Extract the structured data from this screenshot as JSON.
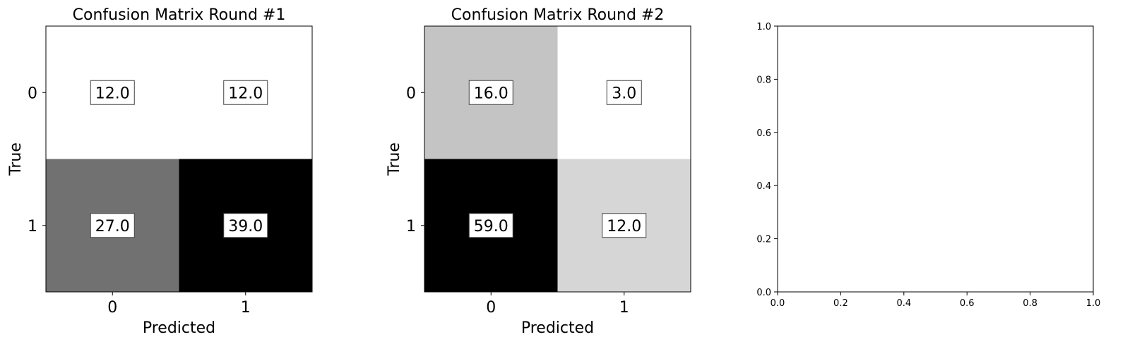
{
  "chart_data": [
    {
      "type": "heatmap",
      "title": "Confusion Matrix Round #1",
      "xlabel": "Predicted",
      "ylabel": "True",
      "x_categories": [
        "0",
        "1"
      ],
      "y_categories": [
        "0",
        "1"
      ],
      "values": [
        [
          12.0,
          12.0
        ],
        [
          27.0,
          39.0
        ]
      ],
      "value_labels": [
        [
          "12.0",
          "12.0"
        ],
        [
          "27.0",
          "39.0"
        ]
      ],
      "colormap": "grayscale-reversed",
      "color_range": [
        12.0,
        39.0
      ]
    },
    {
      "type": "heatmap",
      "title": "Confusion Matrix Round #2",
      "xlabel": "Predicted",
      "ylabel": "True",
      "x_categories": [
        "0",
        "1"
      ],
      "y_categories": [
        "0",
        "1"
      ],
      "values": [
        [
          16.0,
          3.0
        ],
        [
          59.0,
          12.0
        ]
      ],
      "value_labels": [
        [
          "16.0",
          "3.0"
        ],
        [
          "59.0",
          "12.0"
        ]
      ],
      "colormap": "grayscale-reversed",
      "color_range": [
        3.0,
        59.0
      ]
    },
    {
      "type": "line",
      "title": "",
      "xlabel": "",
      "ylabel": "",
      "xlim": [
        0.0,
        1.0
      ],
      "ylim": [
        0.0,
        1.0
      ],
      "xticks": [
        "0.0",
        "0.2",
        "0.4",
        "0.6",
        "0.8",
        "1.0"
      ],
      "yticks": [
        "0.0",
        "0.2",
        "0.4",
        "0.6",
        "0.8",
        "1.0"
      ],
      "series": []
    }
  ]
}
